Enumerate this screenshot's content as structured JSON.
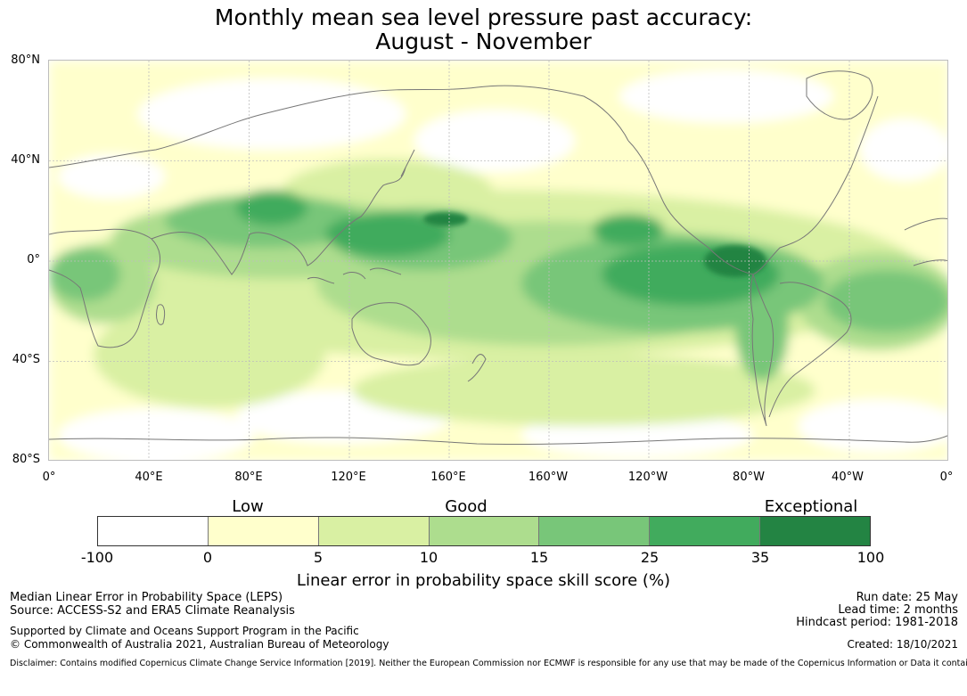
{
  "title": {
    "line1": "Monthly mean sea level pressure past accuracy:",
    "line2": "August - November"
  },
  "map": {
    "lat_labels": [
      "80°N",
      "40°N",
      "0°",
      "40°S",
      "80°S"
    ],
    "lon_labels": [
      "0°",
      "40°E",
      "80°E",
      "120°E",
      "160°E",
      "160°W",
      "120°W",
      "80°W",
      "40°W",
      "0°"
    ],
    "coastline_color": "#777777",
    "grid_color": "#bdbdbd"
  },
  "colorbar": {
    "categories": [
      "Low",
      "Good",
      "Exceptional"
    ],
    "ticks": [
      "-100",
      "0",
      "5",
      "10",
      "15",
      "25",
      "35",
      "100"
    ],
    "colors": [
      "#ffffff",
      "#ffffcc",
      "#d9f0a3",
      "#addd8e",
      "#78c679",
      "#41ab5d",
      "#238443"
    ],
    "title": "Linear error in probability space skill score (%)"
  },
  "info": {
    "method": "Median Linear Error in Probability Space (LEPS)",
    "source": "Source: ACCESS-S2 and ERA5 Climate Reanalysis",
    "support": "Supported by Climate and Oceans Support Program in the Pacific",
    "copyright": "© Commonwealth of Australia 2021, Australian Bureau of Meteorology",
    "run_date": "Run date: 25 May",
    "lead_time": "Lead time: 2 months",
    "hindcast": "Hindcast period: 1981-2018",
    "created": "Created: 18/10/2021",
    "disclaimer": "Disclaimer: Contains modified Copernicus Climate Change Service Information [2019]. Neither the European Commission nor ECMWF is responsible for any use that may be made of the Copernicus Information or Data it contains."
  }
}
